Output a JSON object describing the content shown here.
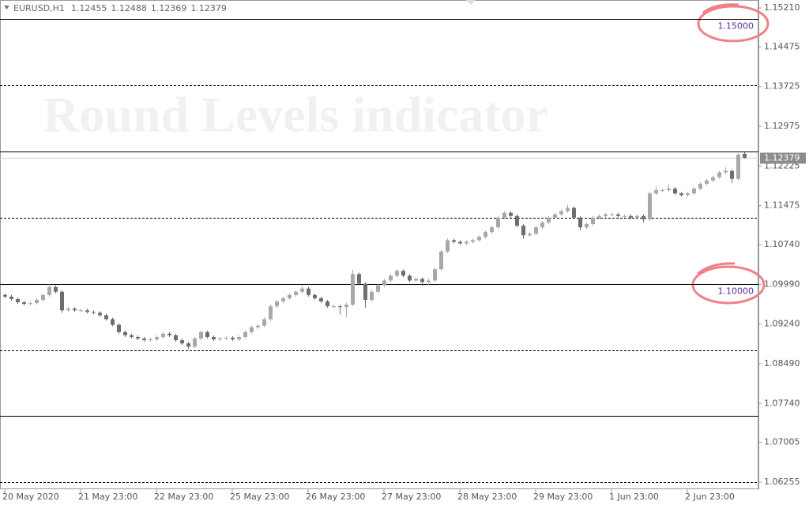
{
  "chart_data": {
    "type": "candlestick",
    "symbol": "EURUSD,H1",
    "watermark": "Round Levels indicator",
    "up_color": "#a8a8a8",
    "down_color": "#6e6e6e",
    "level_color": "#000000",
    "level_label_color": "#5b2d9e",
    "ylim": [
      1.0612,
      1.1536
    ],
    "yticks": [
      {
        "value": 1.1521,
        "label": "1.15210"
      },
      1.14475,
      1.13725,
      1.12975,
      1.12225,
      1.11475,
      {
        "value": 1.1074,
        "label": "1.10740"
      },
      {
        "value": 1.0999,
        "label": "1.09990"
      },
      {
        "value": 1.0924,
        "label": "1.09240"
      },
      {
        "value": 1.0849,
        "label": "1.08490"
      },
      {
        "value": 1.0774,
        "label": "1.07740"
      },
      1.07005,
      1.06255
    ],
    "xticks": [
      {
        "value": 0,
        "label": "20 May 2020"
      },
      {
        "value": 12,
        "label": "21 May 23:00"
      },
      {
        "value": 24,
        "label": "22 May 23:00"
      },
      {
        "value": 36,
        "label": "25 May 23:00"
      },
      {
        "value": 48,
        "label": "26 May 23:00"
      },
      {
        "value": 60,
        "label": "27 May 23:00"
      },
      {
        "value": 72,
        "label": "28 May 23:00"
      },
      {
        "value": 84,
        "label": "29 May 23:00"
      },
      {
        "value": 96,
        "label": "1 Jun 23:00"
      },
      {
        "value": 108,
        "label": "2 Jun 23:00"
      }
    ],
    "levels": [
      {
        "value": 1.15,
        "label": "1.15000"
      },
      1.125,
      {
        "value": 1.1,
        "label": "1.10000"
      },
      1.075
    ],
    "sublevels": [
      1.1375,
      1.1125,
      1.0875,
      1.0625
    ],
    "open": [
      1.0979,
      1.09758,
      1.09712,
      1.09651,
      1.09621,
      1.09636,
      1.09697,
      1.09788,
      1.0994,
      1.09849,
      1.09499,
      1.09529,
      1.09499,
      1.09499,
      1.09468,
      1.09453,
      1.09407,
      1.09331,
      1.09225,
      1.09088,
      1.09027,
      1.08996,
      1.08966,
      1.08935,
      1.0895,
      1.08996,
      1.09057,
      1.09027,
      1.08935,
      1.08874,
      1.08813,
      1.08966,
      1.09088,
      1.08996,
      1.0895,
      1.08966,
      1.08981,
      1.0895,
      1.08996,
      1.09088,
      1.09179,
      1.09209,
      1.09331,
      1.09575,
      1.09666,
      1.09727,
      1.09788,
      1.09849,
      1.0991,
      1.09788,
      1.09727,
      1.09666,
      1.09575,
      1.09575,
      1.09559,
      1.09605,
      1.10184,
      1.10001,
      1.09697,
      1.09849,
      1.09971,
      1.10062,
      1.10153,
      1.10245,
      1.10153,
      1.10062,
      1.10092,
      1.10032,
      1.10062,
      1.10275,
      1.1061,
      1.10823,
      1.10793,
      1.10762,
      1.10793,
      1.10823,
      1.10884,
      1.10976,
      1.11067,
      1.1125,
      1.11341,
      1.1128,
      1.11098,
      1.10915,
      1.10945,
      1.11067,
      1.11158,
      1.1125,
      1.11311,
      1.11372,
      1.11433,
      1.1125,
      1.11067,
      1.11128,
      1.1125,
      1.1128,
      1.11311,
      1.11311,
      1.1128,
      1.1128,
      1.1125,
      1.1128,
      1.11219,
      1.11707,
      1.11768,
      1.11768,
      1.11798,
      1.11707,
      1.11676,
      1.11707,
      1.11798,
      1.1189,
      1.11951,
      1.12012,
      1.12103,
      1.12133,
      1.11981,
      1.12455
    ],
    "high": [
      1.0982,
      1.09788,
      1.09742,
      1.09681,
      1.09666,
      1.09727,
      1.09818,
      1.0999,
      1.0997,
      1.09879,
      1.09559,
      1.09559,
      1.09529,
      1.09529,
      1.09498,
      1.09483,
      1.09437,
      1.09361,
      1.09255,
      1.09118,
      1.09057,
      1.09026,
      1.08996,
      1.0898,
      1.09026,
      1.09087,
      1.09087,
      1.09057,
      1.08965,
      1.08904,
      1.08996,
      1.09118,
      1.09118,
      1.09026,
      1.08996,
      1.09011,
      1.09011,
      1.09026,
      1.09118,
      1.09209,
      1.09239,
      1.09361,
      1.09605,
      1.09696,
      1.09757,
      1.09818,
      1.09879,
      1.0996,
      1.0994,
      1.09818,
      1.09757,
      1.09696,
      1.09605,
      1.09605,
      1.09635,
      1.1026,
      1.10214,
      1.10031,
      1.09879,
      1.10001,
      1.10092,
      1.10183,
      1.10275,
      1.10275,
      1.10183,
      1.10122,
      1.10122,
      1.10092,
      1.10305,
      1.1064,
      1.10853,
      1.10853,
      1.10823,
      1.10823,
      1.10853,
      1.10914,
      1.11006,
      1.11097,
      1.1128,
      1.11371,
      1.11371,
      1.1131,
      1.11128,
      1.10975,
      1.11097,
      1.11188,
      1.1128,
      1.11341,
      1.11402,
      1.1149,
      1.11463,
      1.1128,
      1.11158,
      1.1128,
      1.1131,
      1.11341,
      1.11341,
      1.11341,
      1.1131,
      1.1131,
      1.1131,
      1.1131,
      1.11737,
      1.1184,
      1.11798,
      1.1188,
      1.11828,
      1.11737,
      1.11737,
      1.11828,
      1.1192,
      1.11981,
      1.12042,
      1.12133,
      1.122,
      1.12163,
      1.1247,
      1.12488
    ],
    "low": [
      1.09728,
      1.09682,
      1.09621,
      1.09591,
      1.09591,
      1.09606,
      1.09667,
      1.09758,
      1.09819,
      1.09449,
      1.09469,
      1.09469,
      1.09469,
      1.09438,
      1.09423,
      1.09377,
      1.09301,
      1.09195,
      1.09058,
      1.08997,
      1.08966,
      1.08936,
      1.08905,
      1.08905,
      1.0892,
      1.08966,
      1.08997,
      1.08905,
      1.08844,
      1.0876,
      1.08783,
      1.08936,
      1.08966,
      1.0892,
      1.0892,
      1.08936,
      1.0892,
      1.0892,
      1.08966,
      1.09058,
      1.09149,
      1.09179,
      1.09301,
      1.09545,
      1.09636,
      1.09697,
      1.09758,
      1.09819,
      1.09758,
      1.09697,
      1.09636,
      1.09545,
      1.09545,
      1.0942,
      1.0937,
      1.09575,
      1.09971,
      1.0955,
      1.09667,
      1.09819,
      1.09941,
      1.10032,
      1.10123,
      1.10123,
      1.10032,
      1.10032,
      1.0996,
      1.0998,
      1.10032,
      1.10245,
      1.1058,
      1.10763,
      1.10732,
      1.10732,
      1.10763,
      1.10793,
      1.10854,
      1.10946,
      1.11037,
      1.1122,
      1.1125,
      1.11068,
      1.1085,
      1.10885,
      1.10915,
      1.11037,
      1.11128,
      1.1122,
      1.11281,
      1.11342,
      1.1122,
      1.1101,
      1.11037,
      1.11098,
      1.1122,
      1.1125,
      1.11281,
      1.1125,
      1.1125,
      1.1122,
      1.1122,
      1.1116,
      1.11189,
      1.11677,
      1.11738,
      1.11738,
      1.11677,
      1.11646,
      1.11646,
      1.11677,
      1.11768,
      1.1186,
      1.11921,
      1.11982,
      1.12073,
      1.119,
      1.11951,
      1.12369
    ],
    "close": [
      1.09758,
      1.09712,
      1.09651,
      1.09621,
      1.09636,
      1.09697,
      1.09788,
      1.0994,
      1.09849,
      1.09499,
      1.09529,
      1.09499,
      1.09499,
      1.09468,
      1.09453,
      1.09407,
      1.09331,
      1.09225,
      1.09088,
      1.09027,
      1.08996,
      1.08966,
      1.08935,
      1.0895,
      1.08996,
      1.09057,
      1.09027,
      1.08935,
      1.08874,
      1.08813,
      1.08966,
      1.09088,
      1.08996,
      1.0895,
      1.08966,
      1.08981,
      1.0895,
      1.08996,
      1.09088,
      1.09179,
      1.09209,
      1.09331,
      1.09575,
      1.09666,
      1.09727,
      1.09788,
      1.09849,
      1.0991,
      1.09788,
      1.09727,
      1.09666,
      1.09575,
      1.09575,
      1.09559,
      1.09605,
      1.10184,
      1.10001,
      1.09697,
      1.09849,
      1.09971,
      1.10062,
      1.10153,
      1.10245,
      1.10153,
      1.10062,
      1.10092,
      1.10032,
      1.10062,
      1.10275,
      1.1061,
      1.10823,
      1.10793,
      1.10762,
      1.10793,
      1.10823,
      1.10884,
      1.10976,
      1.11067,
      1.1125,
      1.11341,
      1.1128,
      1.11098,
      1.10915,
      1.10945,
      1.11067,
      1.11158,
      1.1125,
      1.11311,
      1.11372,
      1.11433,
      1.1125,
      1.11067,
      1.11128,
      1.1125,
      1.1128,
      1.11311,
      1.11311,
      1.1128,
      1.1128,
      1.1125,
      1.1128,
      1.11219,
      1.11707,
      1.11768,
      1.11768,
      1.11798,
      1.11707,
      1.11676,
      1.11707,
      1.11798,
      1.1189,
      1.11951,
      1.12012,
      1.12103,
      1.12133,
      1.11981,
      1.1244,
      1.12379
    ]
  }
}
